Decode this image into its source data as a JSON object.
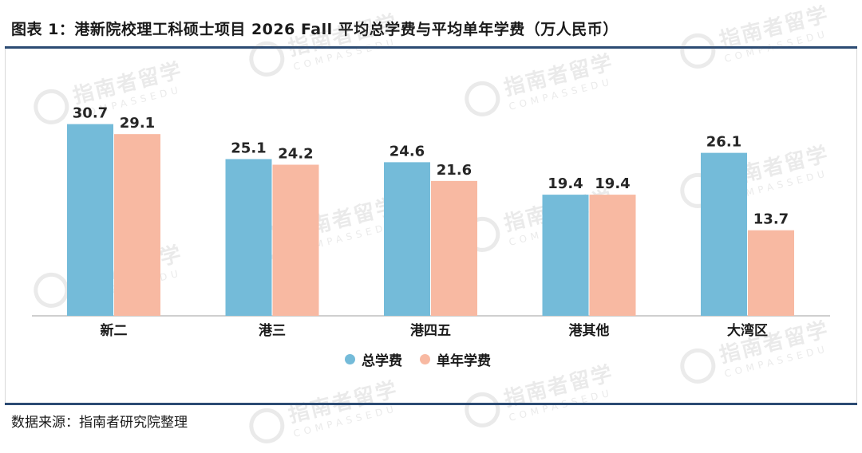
{
  "title": "图表 1：港新院校理工科硕士项目 2026 Fall 平均总学费与平均单年学费（万人民币）",
  "source": "数据来源：指南者研究院整理",
  "watermark": {
    "cn": "指南者留学",
    "en": "COMPASSEDU"
  },
  "colors": {
    "total": "#74bbd9",
    "annual": "#f8b9a2",
    "rule": "#2c4b73"
  },
  "chart_data": {
    "type": "bar",
    "categories": [
      "新二",
      "港三",
      "港四五",
      "港其他",
      "大湾区"
    ],
    "series": [
      {
        "name": "总学费",
        "values": [
          30.7,
          25.1,
          24.6,
          19.4,
          26.1
        ]
      },
      {
        "name": "单年学费",
        "values": [
          29.1,
          24.2,
          21.6,
          19.4,
          13.7
        ]
      }
    ],
    "ylim": [
      0,
      35
    ],
    "grid": false,
    "legend": "bottom",
    "data_labels": true
  }
}
